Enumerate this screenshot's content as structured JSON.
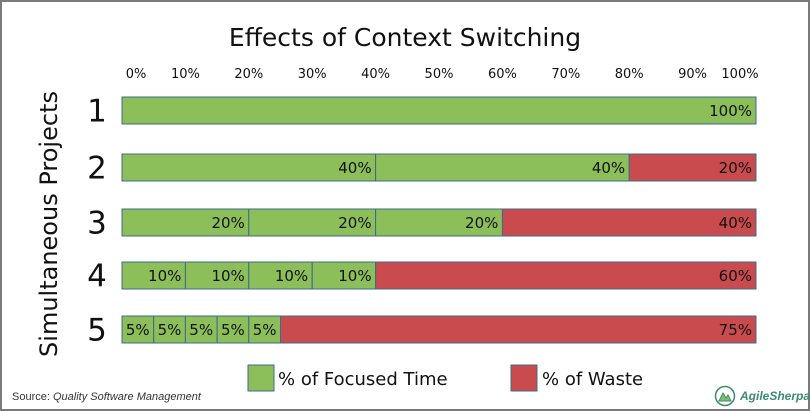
{
  "chart_data": {
    "type": "bar",
    "stacked": true,
    "orientation": "horizontal",
    "title": "Effects of Context Switching",
    "ylabel": "Simultaneous Projects",
    "xlabel": "",
    "xlim": [
      0,
      100
    ],
    "x_ticks": [
      "0%",
      "10%",
      "20%",
      "30%",
      "40%",
      "50%",
      "60%",
      "70%",
      "80%",
      "90%",
      "100%"
    ],
    "categories": [
      "1",
      "2",
      "3",
      "4",
      "5"
    ],
    "series": [
      {
        "name": "% of Focused Time",
        "color": "#8cbf5a",
        "segments": [
          [
            100
          ],
          [
            40,
            40
          ],
          [
            20,
            20,
            20
          ],
          [
            10,
            10,
            10,
            10
          ],
          [
            5,
            5,
            5,
            5,
            5
          ]
        ]
      },
      {
        "name": "% of Waste",
        "color": "#c94b4e",
        "values": [
          0,
          20,
          40,
          60,
          75
        ]
      }
    ],
    "segment_labels": [
      [
        "100%"
      ],
      [
        "40%",
        "40%",
        "20%"
      ],
      [
        "20%",
        "20%",
        "20%",
        "40%"
      ],
      [
        "10%",
        "10%",
        "10%",
        "10%",
        "60%"
      ],
      [
        "5%",
        "5%",
        "5%",
        "5%",
        "5%",
        "75%"
      ]
    ],
    "legend": {
      "position": "bottom",
      "entries": [
        "% of Focused Time",
        "% of Waste"
      ]
    },
    "grid": false,
    "border_color": "#3f6b8c"
  },
  "source": {
    "prefix": "Source: ",
    "title": "Quality Software Management"
  },
  "brand": {
    "name": "AgileSherpas",
    "logo_icon": "mountain-leaf-icon",
    "color": "#3e8a6e"
  }
}
